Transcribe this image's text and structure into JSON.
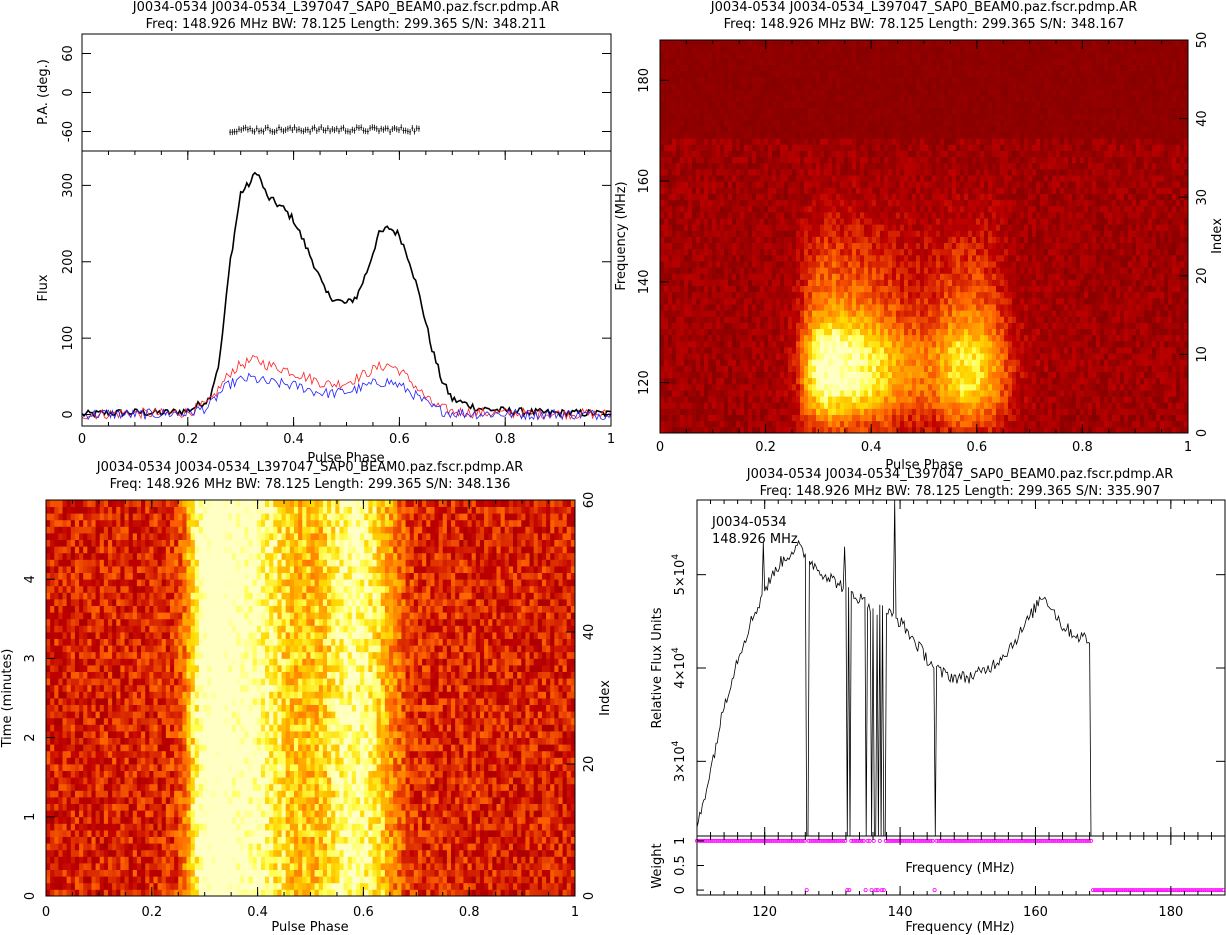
{
  "colors": {
    "total": "#000000",
    "linear": "#ff2020",
    "circular": "#2020ff",
    "weights": "#ff00ff",
    "bandpass": "#000000"
  },
  "chart_data": [
    {
      "type": "line",
      "name": "profile",
      "title": "J0034-0534 J0034-0534_L397047_SAP0_BEAM0.paz.fscr.pdmp.AR",
      "subtitle": "Freq: 148.926 MHz BW: 78.125 Length: 299.365 S/N: 348.211",
      "xlabel": "Pulse Phase",
      "ylabel": "Flux",
      "pa_ylabel": "P.A. (deg.)",
      "xlim": [
        0,
        1
      ],
      "ylim": [
        -15,
        345
      ],
      "pa_ylim": [
        -90,
        90
      ],
      "xticks": [
        "0",
        "0.2",
        "0.4",
        "0.6",
        "0.8",
        "1"
      ],
      "yticks": [
        "0",
        "100",
        "200",
        "300"
      ],
      "pa_yticks": [
        "60",
        "0",
        "-60"
      ],
      "x": [
        0,
        0.05,
        0.1,
        0.15,
        0.2,
        0.24,
        0.26,
        0.28,
        0.3,
        0.32,
        0.33,
        0.35,
        0.38,
        0.4,
        0.42,
        0.44,
        0.46,
        0.48,
        0.5,
        0.52,
        0.54,
        0.56,
        0.58,
        0.6,
        0.62,
        0.64,
        0.66,
        0.68,
        0.7,
        0.75,
        0.8,
        0.85,
        0.9,
        0.95,
        1
      ],
      "series": [
        {
          "key": "total",
          "values": [
            0,
            2,
            3,
            2,
            5,
            20,
            70,
            200,
            290,
            305,
            320,
            285,
            270,
            255,
            225,
            195,
            160,
            150,
            145,
            155,
            190,
            235,
            245,
            235,
            200,
            150,
            90,
            45,
            20,
            8,
            5,
            3,
            2,
            2,
            1
          ]
        },
        {
          "key": "linear",
          "values": [
            0,
            1,
            2,
            1,
            3,
            15,
            35,
            55,
            65,
            70,
            72,
            65,
            60,
            55,
            50,
            45,
            40,
            40,
            42,
            48,
            55,
            62,
            65,
            58,
            45,
            30,
            15,
            8,
            4,
            2,
            2,
            1,
            1,
            1,
            0
          ]
        },
        {
          "key": "circular",
          "values": [
            0,
            1,
            0,
            1,
            2,
            10,
            28,
            40,
            45,
            48,
            46,
            42,
            40,
            38,
            35,
            30,
            28,
            28,
            30,
            33,
            38,
            42,
            43,
            38,
            30,
            20,
            10,
            5,
            2,
            1,
            1,
            0,
            1,
            0,
            0
          ]
        }
      ],
      "pa": {
        "x_start": 0.28,
        "x_end": 0.64,
        "mean_deg": -57,
        "scatter_deg": 4
      }
    },
    {
      "type": "heatmap",
      "name": "frequency-phase",
      "title": "J0034-0534 J0034-0534_L397047_SAP0_BEAM0.paz.fscr.pdmp.AR",
      "subtitle": "Freq: 148.926 MHz BW: 78.125 Length: 299.365 S/N: 348.167",
      "xlabel": "Pulse Phase",
      "ylabel": "Frequency (MHz)",
      "ylabel2": "Index",
      "xlim": [
        0,
        1
      ],
      "ylim": [
        110,
        188
      ],
      "ylim2": [
        0,
        50
      ],
      "xticks": [
        "0",
        "0.2",
        "0.4",
        "0.6",
        "0.8",
        "1"
      ],
      "yticks": [
        "120",
        "140",
        "160",
        "180"
      ],
      "yticks2": [
        "0",
        "10",
        "20",
        "30",
        "40",
        "50"
      ],
      "flagged_above_mhz": 168,
      "colormap": "heat"
    },
    {
      "type": "heatmap",
      "name": "time-phase",
      "title": "J0034-0534 J0034-0534_L397047_SAP0_BEAM0.paz.fscr.pdmp.AR",
      "subtitle": "Freq: 148.926 MHz BW: 78.125 Length: 299.365 S/N: 348.136",
      "xlabel": "Pulse Phase",
      "ylabel": "Time (minutes)",
      "ylabel2": "Index",
      "xlim": [
        0,
        1
      ],
      "ylim": [
        0,
        5
      ],
      "ylim2": [
        0,
        60
      ],
      "xticks": [
        "0",
        "0.2",
        "0.4",
        "0.6",
        "0.8",
        "1"
      ],
      "yticks": [
        "0",
        "1",
        "2",
        "3",
        "4"
      ],
      "yticks2": [
        "0",
        "20",
        "40",
        "60"
      ],
      "colormap": "heat"
    },
    {
      "type": "line",
      "name": "bandpass",
      "title": "J0034-0534 J0034-0534_L397047_SAP0_BEAM0.paz.fscr.pdmp.AR",
      "subtitle": "Freq: 148.926 MHz BW: 78.125 Length: 299.365 S/N: 335.907",
      "legend_lines": [
        "J0034-0534",
        "148.926 MHz"
      ],
      "xlabel": "Frequency (MHz)",
      "ylabel": "Relative Flux Units",
      "weight_ylabel": "Weight",
      "weight_xlabel": "Frequency (MHz)",
      "xlim": [
        110,
        188
      ],
      "ylim": [
        22000,
        58000
      ],
      "weight_ylim": [
        -0.1,
        1.1
      ],
      "xticks": [
        "120",
        "140",
        "160",
        "180"
      ],
      "yticks": [
        {
          "base": "3×10",
          "exp": "4",
          "value": 30000
        },
        {
          "base": "4×10",
          "exp": "4",
          "value": 40000
        },
        {
          "base": "5×10",
          "exp": "4",
          "value": 50000
        }
      ],
      "weight_yticks": [
        "0",
        "0.5",
        "1"
      ],
      "x": [
        110,
        112,
        114,
        116,
        118,
        119.8,
        120.5,
        122,
        124,
        125,
        126,
        128,
        130,
        132,
        134,
        136,
        138,
        140,
        142,
        144,
        146,
        148,
        150,
        152,
        154,
        156,
        158,
        160,
        161,
        162,
        164,
        166,
        168,
        168.3
      ],
      "values": [
        23000,
        29000,
        36000,
        41000,
        45000,
        48000,
        49000,
        51000,
        52500,
        53000,
        52000,
        50500,
        49500,
        48500,
        47500,
        46500,
        46000,
        45000,
        43000,
        41000,
        39500,
        39000,
        39000,
        39500,
        40500,
        42000,
        44000,
        46500,
        47800,
        47000,
        44500,
        43500,
        43000,
        0
      ],
      "spikes": [
        {
          "x": 119.8,
          "value": 53500
        },
        {
          "x": 131.8,
          "value": 53000
        },
        {
          "x": 139.2,
          "value": 58000
        },
        {
          "x": 145,
          "value": 40000
        }
      ],
      "dropouts": [
        126.3,
        132.2,
        132.6,
        135.0,
        135.8,
        136.3,
        136.8,
        137.2,
        137.7,
        145.2
      ],
      "zero_weight_start": 168.3
    }
  ]
}
